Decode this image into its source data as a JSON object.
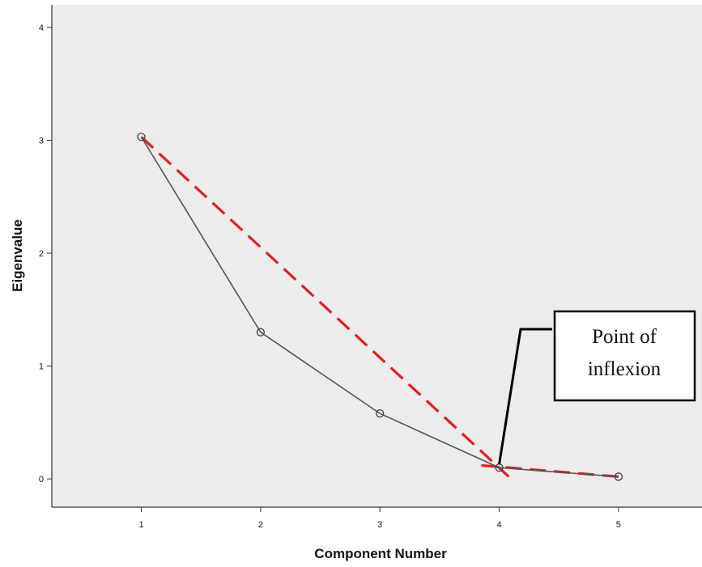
{
  "chart_data": {
    "type": "line",
    "xlabel": "Component Number",
    "ylabel": "Eigenvalue",
    "xlim": [
      0.25,
      5.7
    ],
    "ylim": [
      -0.25,
      4.2
    ],
    "x_ticks": [
      1,
      2,
      3,
      4,
      5
    ],
    "y_ticks": [
      0,
      1,
      2,
      3,
      4
    ],
    "grid": false,
    "plot_background": "#ececec",
    "series": [
      {
        "x": [
          1,
          2,
          3,
          4,
          5
        ],
        "values": [
          3.03,
          1.3,
          0.58,
          0.1,
          0.02
        ],
        "color": "#555555",
        "marker": "circle"
      }
    ],
    "reference_lines": [
      {
        "points": [
          [
            1,
            3.03
          ],
          [
            4.08,
            0.02
          ]
        ],
        "color": "#e02020",
        "style": "dashed"
      },
      {
        "points": [
          [
            3.85,
            0.12
          ],
          [
            5,
            0.02
          ]
        ],
        "color": "#e02020",
        "style": "dashed"
      }
    ],
    "annotation": {
      "lines": [
        "Point of",
        "inflexion"
      ],
      "pointer_target": [
        4,
        0.1
      ]
    }
  }
}
